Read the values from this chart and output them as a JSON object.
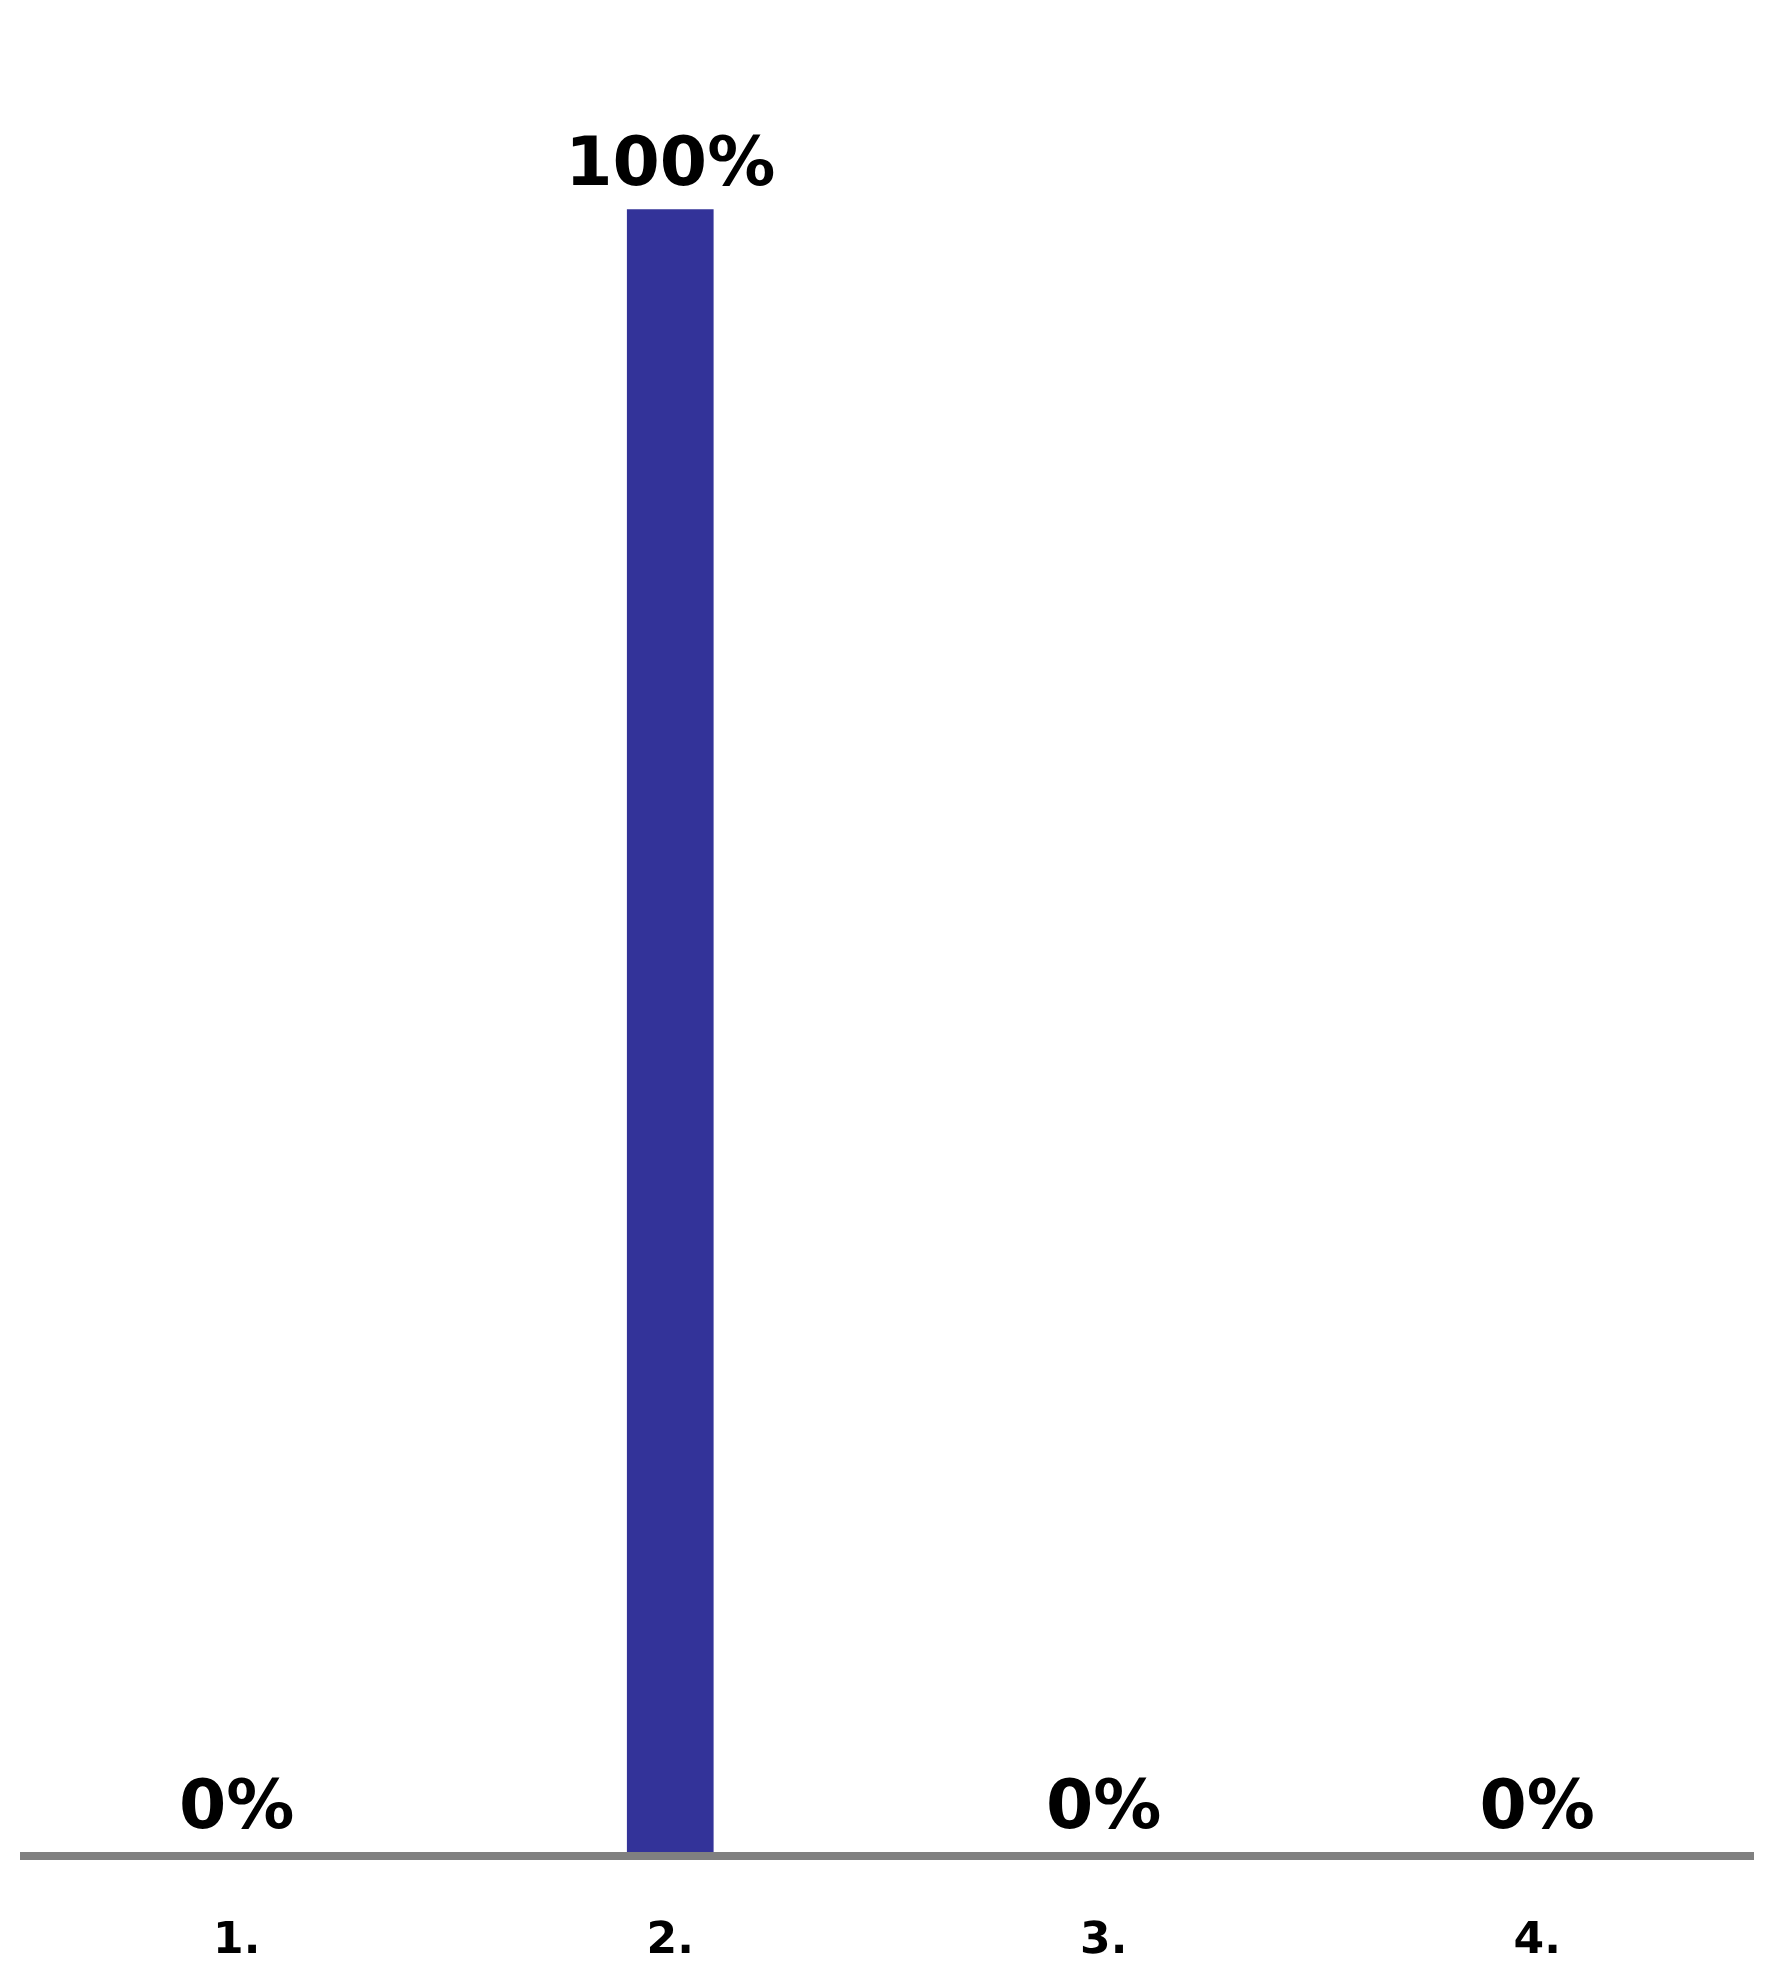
{
  "chart_data": {
    "type": "bar",
    "categories": [
      "1.",
      "2.",
      "3.",
      "4."
    ],
    "values": [
      0,
      100,
      0,
      0
    ],
    "colors": [
      "#8fb0b3",
      "#333399",
      "#007575",
      "#669900"
    ],
    "value_labels": [
      "0%",
      "100%",
      "0%",
      "0%"
    ],
    "legend": false,
    "tick_labels": "x"
  }
}
